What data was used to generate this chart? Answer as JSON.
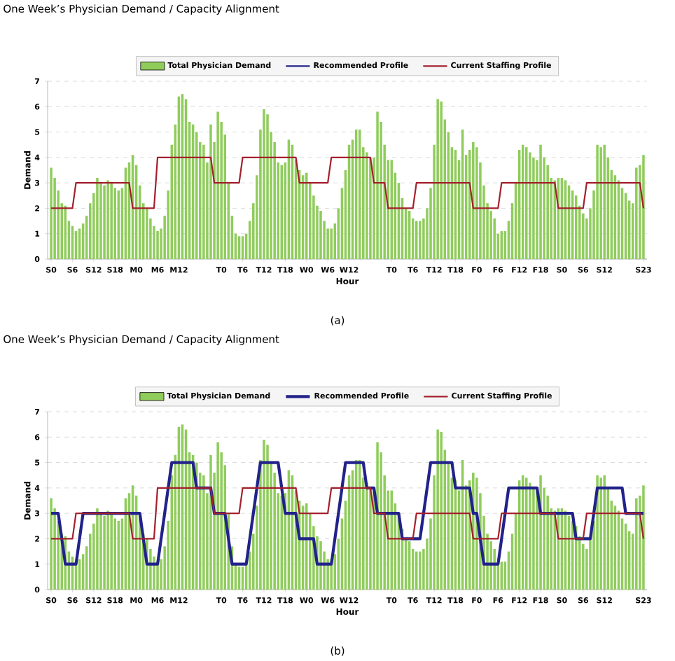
{
  "chart_data": [
    {
      "type": "bar",
      "title": "One Week’s Physician Demand / Capacity Alignment",
      "xlabel": "Hour",
      "ylabel": "Demand",
      "annotations": [
        "(a)"
      ],
      "categories": [
        "S0",
        null,
        null,
        null,
        null,
        null,
        "S6",
        null,
        null,
        null,
        null,
        null,
        "S12",
        null,
        null,
        null,
        null,
        null,
        "S18",
        null,
        null,
        null,
        null,
        null,
        "M0",
        null,
        null,
        null,
        null,
        null,
        "M6",
        null,
        null,
        null,
        null,
        null,
        "M12",
        null,
        null,
        null,
        null,
        null,
        null,
        null,
        null,
        null,
        null,
        null,
        "T0",
        null,
        null,
        null,
        null,
        null,
        "T6",
        null,
        null,
        null,
        null,
        null,
        "T12",
        null,
        null,
        null,
        null,
        null,
        "T18",
        null,
        null,
        null,
        null,
        null,
        "W0",
        null,
        null,
        null,
        null,
        null,
        "W6",
        null,
        null,
        null,
        null,
        null,
        "W12",
        null,
        null,
        null,
        null,
        null,
        null,
        null,
        null,
        null,
        null,
        null,
        "T0",
        null,
        null,
        null,
        null,
        null,
        "T6",
        null,
        null,
        null,
        null,
        null,
        "T12",
        null,
        null,
        null,
        null,
        null,
        "T18",
        null,
        null,
        null,
        null,
        null,
        "F0",
        null,
        null,
        null,
        null,
        null,
        "F6",
        null,
        null,
        null,
        null,
        null,
        "F12",
        null,
        null,
        null,
        null,
        null,
        "F18",
        null,
        null,
        null,
        null,
        null,
        "S0",
        null,
        null,
        null,
        null,
        null,
        "S6",
        null,
        null,
        null,
        null,
        null,
        "S12",
        null,
        null,
        null,
        null,
        null,
        null,
        null,
        null,
        null,
        null,
        "S23"
      ],
      "ylim": [
        0,
        7
      ],
      "yticks": [
        0,
        1,
        2,
        3,
        4,
        5,
        6,
        7
      ],
      "grid": "y",
      "legend": "top",
      "series": [
        {
          "name": "Total Physician Demand",
          "type": "bar",
          "color": "#8fcc5c",
          "values": [
            3.6,
            3.2,
            2.7,
            2.2,
            2.1,
            1.5,
            1.3,
            1.1,
            1.2,
            1.4,
            1.7,
            2.2,
            2.6,
            3.2,
            3.0,
            2.9,
            3.1,
            3.0,
            2.8,
            2.7,
            2.8,
            3.6,
            3.8,
            4.1,
            3.7,
            2.9,
            2.2,
            2.0,
            1.6,
            1.3,
            1.1,
            1.2,
            1.7,
            2.7,
            4.5,
            5.3,
            6.4,
            6.5,
            6.3,
            5.4,
            5.3,
            5.0,
            4.6,
            4.5,
            3.8,
            5.3,
            4.6,
            5.8,
            5.4,
            4.9,
            3.0,
            1.7,
            1.0,
            0.9,
            0.9,
            1.0,
            1.5,
            2.2,
            3.3,
            5.1,
            5.9,
            5.7,
            5.0,
            4.6,
            3.8,
            3.7,
            3.8,
            4.7,
            4.5,
            3.9,
            3.5,
            3.3,
            3.4,
            3.0,
            2.5,
            2.1,
            1.9,
            1.5,
            1.2,
            1.2,
            1.4,
            2.0,
            2.8,
            3.5,
            4.5,
            4.7,
            5.1,
            5.1,
            4.4,
            4.2,
            4.0,
            4.0,
            5.8,
            5.4,
            4.5,
            3.9,
            3.9,
            3.4,
            3.0,
            2.4,
            2.0,
            1.9,
            1.6,
            1.5,
            1.5,
            1.6,
            2.0,
            2.8,
            4.5,
            6.3,
            6.2,
            5.5,
            5.0,
            4.4,
            4.3,
            3.9,
            5.1,
            4.1,
            4.3,
            4.6,
            4.4,
            3.8,
            2.9,
            2.2,
            1.9,
            1.6,
            1.0,
            1.1,
            1.1,
            1.5,
            2.2,
            3.0,
            4.3,
            4.5,
            4.4,
            4.2,
            4.0,
            3.9,
            4.5,
            4.0,
            3.7,
            3.2,
            3.1,
            3.2,
            3.2,
            3.1,
            2.9,
            2.7,
            2.5,
            2.1,
            1.8,
            1.6,
            2.0,
            2.7,
            4.5,
            4.4,
            4.5,
            4.0,
            3.5,
            3.3,
            3.1,
            2.8,
            2.6,
            2.3,
            2.2,
            3.6,
            3.7,
            4.1
          ]
        },
        {
          "name": "Recommended Profile",
          "type": "line",
          "color": "#22228a",
          "values": [
            null,
            null,
            null,
            null,
            null,
            null,
            null,
            null,
            null,
            null,
            null,
            null,
            null,
            null,
            null,
            null,
            null,
            null,
            null,
            null,
            null,
            null,
            null,
            null,
            null,
            null,
            null,
            null,
            null,
            null,
            null,
            null,
            null,
            null,
            null,
            null,
            null,
            null,
            null,
            null,
            null,
            null,
            null,
            null,
            null,
            null,
            null,
            null,
            null,
            null,
            null,
            null,
            null,
            null,
            null,
            null,
            null,
            null,
            null,
            null,
            null,
            null,
            null,
            null,
            null,
            null,
            null,
            null,
            null,
            null,
            null,
            null,
            null,
            null,
            null,
            null,
            null,
            null,
            null,
            null,
            null,
            null,
            null,
            null,
            null,
            null,
            null,
            null,
            null,
            null,
            null,
            null,
            null,
            null,
            null,
            null,
            null,
            null,
            null,
            null,
            null,
            null,
            null,
            null,
            null,
            null,
            null,
            null,
            null,
            null,
            null,
            null,
            null,
            null,
            null,
            null,
            null,
            null,
            null,
            null,
            null,
            null,
            null,
            null,
            null,
            null,
            null,
            null,
            null,
            null,
            null,
            null,
            null,
            null,
            null,
            null,
            null,
            null,
            null,
            null,
            null,
            null,
            null,
            null,
            null,
            null,
            null,
            null,
            null,
            null,
            null,
            null,
            null,
            null,
            null,
            null,
            null,
            null,
            null,
            null,
            null,
            null,
            null,
            null,
            null,
            null,
            null,
            null
          ]
        },
        {
          "name": "Current Staffing Profile",
          "type": "line",
          "color": "#a3202c",
          "values": [
            2,
            2,
            2,
            2,
            2,
            2,
            2,
            3,
            3,
            3,
            3,
            3,
            3,
            3,
            3,
            3,
            3,
            3,
            3,
            3,
            3,
            3,
            3,
            2,
            2,
            2,
            2,
            2,
            2,
            2,
            4,
            4,
            4,
            4,
            4,
            4,
            4,
            4,
            4,
            4,
            4,
            4,
            4,
            4,
            4,
            4,
            3,
            3,
            3,
            3,
            3,
            3,
            3,
            3,
            4,
            4,
            4,
            4,
            4,
            4,
            4,
            4,
            4,
            4,
            4,
            4,
            4,
            4,
            4,
            4,
            3,
            3,
            3,
            3,
            3,
            3,
            3,
            3,
            3,
            4,
            4,
            4,
            4,
            4,
            4,
            4,
            4,
            4,
            4,
            4,
            4,
            3,
            3,
            3,
            3,
            2,
            2,
            2,
            2,
            2,
            2,
            2,
            2,
            3,
            3,
            3,
            3,
            3,
            3,
            3,
            3,
            3,
            3,
            3,
            3,
            3,
            3,
            3,
            3,
            2,
            2,
            2,
            2,
            2,
            2,
            2,
            2,
            3,
            3,
            3,
            3,
            3,
            3,
            3,
            3,
            3,
            3,
            3,
            3,
            3,
            3,
            3,
            3,
            2,
            2,
            2,
            2,
            2,
            2,
            2,
            2,
            3,
            3,
            3,
            3,
            3,
            3,
            3,
            3,
            3,
            3,
            3,
            3,
            3,
            3,
            3,
            3,
            2
          ]
        }
      ]
    },
    {
      "type": "bar",
      "title": "One Week’s Physician Demand / Capacity Alignment",
      "xlabel": "Hour",
      "ylabel": "Demand",
      "annotations": [
        "(b)"
      ],
      "categories": [
        "S0",
        null,
        null,
        null,
        null,
        null,
        "S6",
        null,
        null,
        null,
        null,
        null,
        "S12",
        null,
        null,
        null,
        null,
        null,
        "S18",
        null,
        null,
        null,
        null,
        null,
        "M0",
        null,
        null,
        null,
        null,
        null,
        "M6",
        null,
        null,
        null,
        null,
        null,
        "M12",
        null,
        null,
        null,
        null,
        null,
        null,
        null,
        null,
        null,
        null,
        null,
        "T0",
        null,
        null,
        null,
        null,
        null,
        "T6",
        null,
        null,
        null,
        null,
        null,
        "T12",
        null,
        null,
        null,
        null,
        null,
        "T18",
        null,
        null,
        null,
        null,
        null,
        "W0",
        null,
        null,
        null,
        null,
        null,
        "W6",
        null,
        null,
        null,
        null,
        null,
        "W12",
        null,
        null,
        null,
        null,
        null,
        null,
        null,
        null,
        null,
        null,
        null,
        "T0",
        null,
        null,
        null,
        null,
        null,
        "T6",
        null,
        null,
        null,
        null,
        null,
        "T12",
        null,
        null,
        null,
        null,
        null,
        "T18",
        null,
        null,
        null,
        null,
        null,
        "F0",
        null,
        null,
        null,
        null,
        null,
        "F6",
        null,
        null,
        null,
        null,
        null,
        "F12",
        null,
        null,
        null,
        null,
        null,
        "F18",
        null,
        null,
        null,
        null,
        null,
        "S0",
        null,
        null,
        null,
        null,
        null,
        "S6",
        null,
        null,
        null,
        null,
        null,
        "S12",
        null,
        null,
        null,
        null,
        null,
        null,
        null,
        null,
        null,
        null,
        "S23"
      ],
      "ylim": [
        0,
        7
      ],
      "yticks": [
        0,
        1,
        2,
        3,
        4,
        5,
        6,
        7
      ],
      "grid": "y",
      "legend": "top",
      "series": [
        {
          "name": "Total Physician Demand",
          "type": "bar",
          "color": "#8fcc5c",
          "values": [
            3.6,
            3.2,
            2.7,
            2.2,
            2.1,
            1.5,
            1.3,
            1.1,
            1.2,
            1.4,
            1.7,
            2.2,
            2.6,
            3.2,
            3.0,
            2.9,
            3.1,
            3.0,
            2.8,
            2.7,
            2.8,
            3.6,
            3.8,
            4.1,
            3.7,
            2.9,
            2.2,
            2.0,
            1.6,
            1.3,
            1.1,
            1.2,
            1.7,
            2.7,
            4.5,
            5.3,
            6.4,
            6.5,
            6.3,
            5.4,
            5.3,
            5.0,
            4.6,
            4.5,
            3.8,
            5.3,
            4.6,
            5.8,
            5.4,
            4.9,
            3.0,
            1.7,
            1.0,
            0.9,
            0.9,
            1.0,
            1.5,
            2.2,
            3.3,
            5.1,
            5.9,
            5.7,
            5.0,
            4.6,
            3.8,
            3.7,
            3.8,
            4.7,
            4.5,
            3.9,
            3.5,
            3.3,
            3.4,
            3.0,
            2.5,
            2.1,
            1.9,
            1.5,
            1.2,
            1.2,
            1.4,
            2.0,
            2.8,
            3.5,
            4.5,
            4.7,
            5.1,
            5.1,
            4.4,
            4.2,
            4.0,
            4.0,
            5.8,
            5.4,
            4.5,
            3.9,
            3.9,
            3.4,
            3.0,
            2.4,
            2.0,
            1.9,
            1.6,
            1.5,
            1.5,
            1.6,
            2.0,
            2.8,
            4.5,
            6.3,
            6.2,
            5.5,
            5.0,
            4.4,
            4.3,
            3.9,
            5.1,
            4.1,
            4.3,
            4.6,
            4.4,
            3.8,
            2.9,
            2.2,
            1.9,
            1.6,
            1.0,
            1.1,
            1.1,
            1.5,
            2.2,
            3.0,
            4.3,
            4.5,
            4.4,
            4.2,
            4.0,
            3.9,
            4.5,
            4.0,
            3.7,
            3.2,
            3.1,
            3.2,
            3.2,
            3.1,
            2.9,
            2.7,
            2.5,
            2.1,
            1.8,
            1.6,
            2.0,
            2.7,
            4.5,
            4.4,
            4.5,
            4.0,
            3.5,
            3.3,
            3.1,
            2.8,
            2.6,
            2.3,
            2.2,
            3.6,
            3.7,
            4.1
          ]
        },
        {
          "name": "Recommended Profile",
          "type": "line",
          "color": "#22228a",
          "values": [
            3,
            3,
            3,
            2,
            1,
            1,
            1,
            1,
            2,
            3,
            3,
            3,
            3,
            3,
            3,
            3,
            3,
            3,
            3,
            3,
            3,
            3,
            3,
            3,
            3,
            3,
            2,
            1,
            1,
            1,
            1,
            2,
            3,
            4,
            5,
            5,
            5,
            5,
            5,
            5,
            5,
            4,
            4,
            4,
            4,
            4,
            3,
            3,
            3,
            3,
            2,
            1,
            1,
            1,
            1,
            1,
            2,
            3,
            4,
            5,
            5,
            5,
            5,
            5,
            5,
            4,
            3,
            3,
            3,
            3,
            2,
            2,
            2,
            2,
            2,
            1,
            1,
            1,
            1,
            1,
            2,
            3,
            4,
            5,
            5,
            5,
            5,
            5,
            5,
            4,
            4,
            4,
            3,
            3,
            3,
            3,
            3,
            3,
            3,
            2,
            2,
            2,
            2,
            2,
            2,
            3,
            4,
            5,
            5,
            5,
            5,
            5,
            5,
            5,
            4,
            4,
            4,
            4,
            4,
            3,
            3,
            2,
            1,
            1,
            1,
            1,
            1,
            2,
            3,
            4,
            4,
            4,
            4,
            4,
            4,
            4,
            4,
            4,
            3,
            3,
            3,
            3,
            3,
            3,
            3,
            3,
            3,
            3,
            2,
            2,
            2,
            2,
            2,
            3,
            4,
            4,
            4,
            4,
            4,
            4,
            4,
            4,
            3,
            3,
            3,
            3,
            3,
            3
          ]
        },
        {
          "name": "Current Staffing Profile",
          "type": "line",
          "color": "#a3202c",
          "values": [
            2,
            2,
            2,
            2,
            2,
            2,
            2,
            3,
            3,
            3,
            3,
            3,
            3,
            3,
            3,
            3,
            3,
            3,
            3,
            3,
            3,
            3,
            3,
            2,
            2,
            2,
            2,
            2,
            2,
            2,
            4,
            4,
            4,
            4,
            4,
            4,
            4,
            4,
            4,
            4,
            4,
            4,
            4,
            4,
            4,
            4,
            3,
            3,
            3,
            3,
            3,
            3,
            3,
            3,
            4,
            4,
            4,
            4,
            4,
            4,
            4,
            4,
            4,
            4,
            4,
            4,
            4,
            4,
            4,
            4,
            3,
            3,
            3,
            3,
            3,
            3,
            3,
            3,
            3,
            4,
            4,
            4,
            4,
            4,
            4,
            4,
            4,
            4,
            4,
            4,
            4,
            3,
            3,
            3,
            3,
            2,
            2,
            2,
            2,
            2,
            2,
            2,
            2,
            3,
            3,
            3,
            3,
            3,
            3,
            3,
            3,
            3,
            3,
            3,
            3,
            3,
            3,
            3,
            3,
            2,
            2,
            2,
            2,
            2,
            2,
            2,
            2,
            3,
            3,
            3,
            3,
            3,
            3,
            3,
            3,
            3,
            3,
            3,
            3,
            3,
            3,
            3,
            3,
            2,
            2,
            2,
            2,
            2,
            2,
            2,
            2,
            3,
            3,
            3,
            3,
            3,
            3,
            3,
            3,
            3,
            3,
            3,
            3,
            3,
            3,
            3,
            3,
            2
          ]
        }
      ]
    }
  ]
}
